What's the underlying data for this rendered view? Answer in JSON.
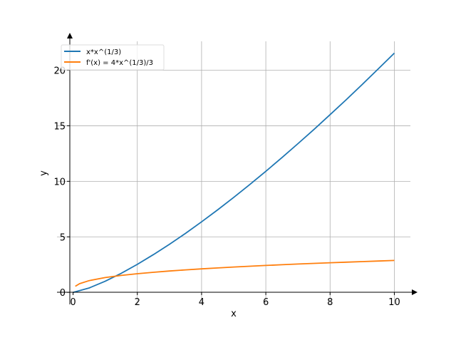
{
  "chart_data": {
    "type": "line",
    "title": "",
    "xlabel": "x",
    "ylabel": "y",
    "xlim": [
      -0.5,
      10.5
    ],
    "ylim": [
      -1.08,
      22.6
    ],
    "grid": true,
    "legend_position": "top-left",
    "xticks": [
      0,
      2,
      4,
      6,
      8,
      10
    ],
    "xtick_labels": [
      "0",
      "2",
      "4",
      "6",
      "8",
      "10"
    ],
    "yticks": [
      0,
      5,
      10,
      15,
      20
    ],
    "ytick_labels": [
      "0",
      "5",
      "10",
      "15",
      "20"
    ],
    "series": [
      {
        "name": "x*x^(1/3)",
        "color": "#1f77b4",
        "x": [
          0,
          0.5,
          1,
          1.5,
          2,
          2.5,
          3,
          3.5,
          4,
          4.5,
          5,
          5.5,
          6,
          6.5,
          7,
          7.5,
          8,
          8.5,
          9,
          9.5,
          10
        ],
        "y": [
          0,
          0.397,
          1,
          1.717,
          2.52,
          3.4,
          4.327,
          5.314,
          6.35,
          7.43,
          8.55,
          9.71,
          10.9,
          12.13,
          13.39,
          14.67,
          16,
          17.34,
          18.72,
          20.12,
          21.54
        ]
      },
      {
        "name": "f'(x) = 4*x^(1/3)/3",
        "color": "#ff7f0e",
        "x": [
          0.07,
          0.2,
          0.5,
          1,
          1.5,
          2,
          2.5,
          3,
          3.5,
          4,
          4.5,
          5,
          5.5,
          6,
          6.5,
          7,
          7.5,
          8,
          8.5,
          9,
          9.5,
          10
        ],
        "y": [
          0.55,
          0.78,
          1.058,
          1.333,
          1.526,
          1.68,
          1.81,
          1.923,
          2.024,
          2.117,
          2.201,
          2.28,
          2.354,
          2.423,
          2.489,
          2.551,
          2.61,
          2.667,
          2.721,
          2.773,
          2.824,
          2.873
        ]
      }
    ]
  }
}
